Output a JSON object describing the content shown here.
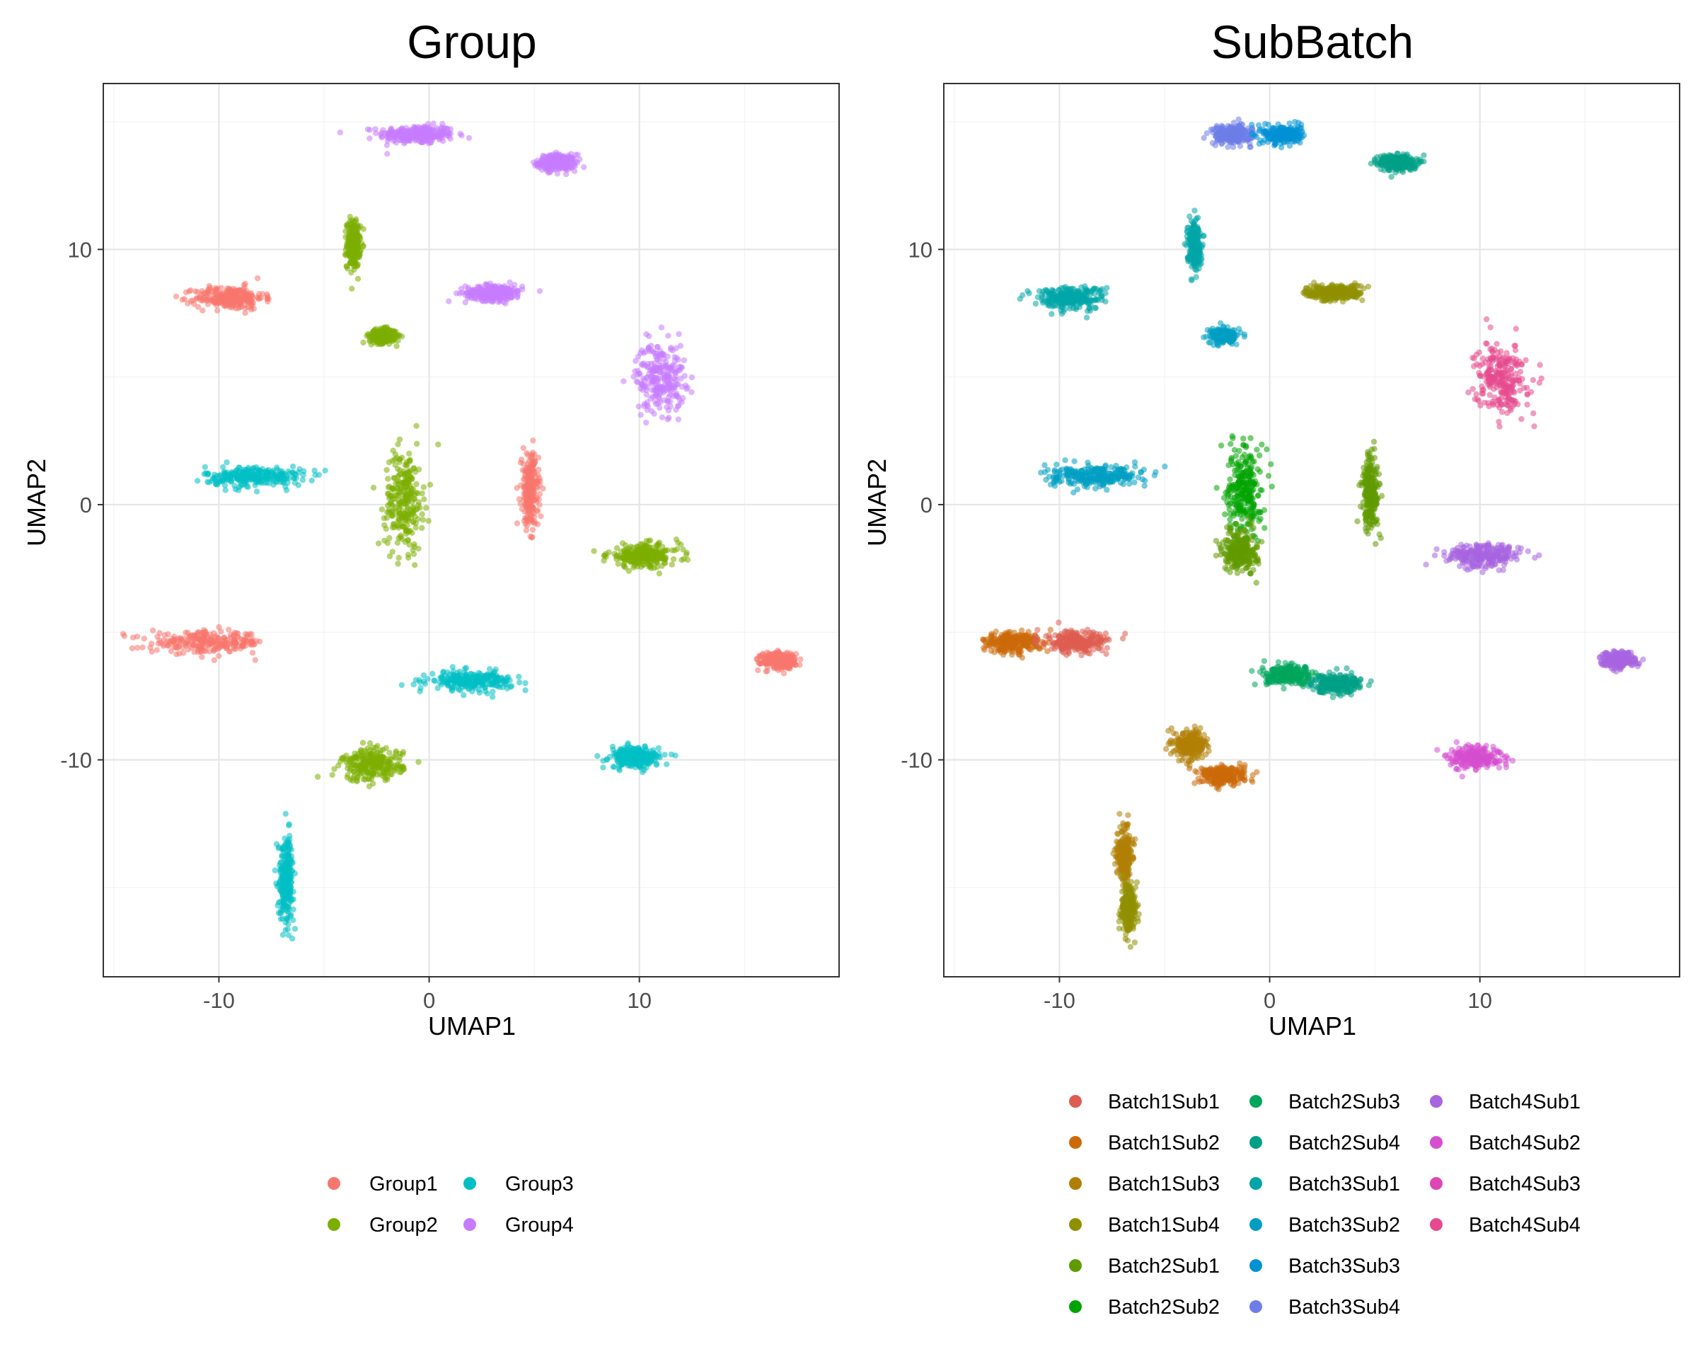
{
  "chart_data": [
    {
      "type": "scatter",
      "title": "Group",
      "xlabel": "UMAP1",
      "ylabel": "UMAP2",
      "xlim": [
        -15.5,
        19.5
      ],
      "ylim": [
        -18.5,
        16.5
      ],
      "xticks": [
        -10,
        0,
        10
      ],
      "yticks": [
        -10,
        0,
        10
      ],
      "grid": true,
      "legend_position": "bottom",
      "legend": [
        "Group1",
        "Group2",
        "Group3",
        "Group4"
      ],
      "colors": {
        "Group1": "#F8766D",
        "Group2": "#7CAE00",
        "Group3": "#00BFC4",
        "Group4": "#C77CFF"
      },
      "clusters": [
        {
          "series": "Group4",
          "center": [
            -0.6,
            14.5
          ],
          "sx": 2.0,
          "sy": 0.4
        },
        {
          "series": "Group4",
          "center": [
            6.1,
            13.4
          ],
          "sx": 1.0,
          "sy": 0.35
        },
        {
          "series": "Group2",
          "center": [
            -3.6,
            10.2
          ],
          "sx": 0.35,
          "sy": 1.0
        },
        {
          "series": "Group1",
          "center": [
            -9.5,
            8.1
          ],
          "sx": 1.8,
          "sy": 0.5
        },
        {
          "series": "Group4",
          "center": [
            3.1,
            8.3
          ],
          "sx": 1.5,
          "sy": 0.35
        },
        {
          "series": "Group2",
          "center": [
            -2.2,
            6.6
          ],
          "sx": 0.7,
          "sy": 0.3
        },
        {
          "series": "Group4",
          "center": [
            11.0,
            5.0
          ],
          "sx": 1.3,
          "sy": 1.5
        },
        {
          "series": "Group3",
          "center": [
            -8.3,
            1.1
          ],
          "sx": 2.6,
          "sy": 0.45
        },
        {
          "series": "Group2",
          "center": [
            -1.2,
            0.2
          ],
          "sx": 1.0,
          "sy": 2.2
        },
        {
          "series": "Group1",
          "center": [
            4.8,
            0.5
          ],
          "sx": 0.45,
          "sy": 1.6
        },
        {
          "series": "Group2",
          "center": [
            10.2,
            -2.0
          ],
          "sx": 1.9,
          "sy": 0.5
        },
        {
          "series": "Group1",
          "center": [
            -10.5,
            -5.4
          ],
          "sx": 3.0,
          "sy": 0.45
        },
        {
          "series": "Group3",
          "center": [
            2.0,
            -6.9
          ],
          "sx": 2.2,
          "sy": 0.4
        },
        {
          "series": "Group1",
          "center": [
            16.6,
            -6.1
          ],
          "sx": 0.9,
          "sy": 0.35
        },
        {
          "series": "Group2",
          "center": [
            -2.7,
            -10.2
          ],
          "sx": 1.6,
          "sy": 0.7
        },
        {
          "series": "Group3",
          "center": [
            9.8,
            -9.9
          ],
          "sx": 1.3,
          "sy": 0.45
        },
        {
          "series": "Group3",
          "center": [
            -6.8,
            -14.6
          ],
          "sx": 0.4,
          "sy": 1.8
        }
      ]
    },
    {
      "type": "scatter",
      "title": "SubBatch",
      "xlabel": "UMAP1",
      "ylabel": "UMAP2",
      "xlim": [
        -15.5,
        19.5
      ],
      "ylim": [
        -18.5,
        16.5
      ],
      "xticks": [
        -10,
        0,
        10
      ],
      "yticks": [
        -10,
        0,
        10
      ],
      "grid": true,
      "legend_position": "bottom",
      "legend": [
        "Batch1Sub1",
        "Batch1Sub2",
        "Batch1Sub3",
        "Batch1Sub4",
        "Batch2Sub1",
        "Batch2Sub2",
        "Batch2Sub3",
        "Batch2Sub4",
        "Batch3Sub1",
        "Batch3Sub2",
        "Batch3Sub3",
        "Batch3Sub4",
        "Batch4Sub1",
        "Batch4Sub2",
        "Batch4Sub3",
        "Batch4Sub4"
      ],
      "colors": {
        "Batch1Sub1": "#DE5C51",
        "Batch1Sub2": "#CC6A0A",
        "Batch1Sub3": "#B17F06",
        "Batch1Sub4": "#908F00",
        "Batch2Sub1": "#609A00",
        "Batch2Sub2": "#00A400",
        "Batch2Sub3": "#00A65C",
        "Batch2Sub4": "#00A086",
        "Batch3Sub1": "#00A5A8",
        "Batch3Sub2": "#009FC2",
        "Batch3Sub3": "#0092D5",
        "Batch3Sub4": "#6E7DE8",
        "Batch4Sub1": "#A865E0",
        "Batch4Sub2": "#D54FCF",
        "Batch4Sub3": "#DE47B3",
        "Batch4Sub4": "#E54B8E"
      },
      "clusters": [
        {
          "series": "Batch3Sub4",
          "center": [
            -1.8,
            14.5
          ],
          "sx": 1.0,
          "sy": 0.4
        },
        {
          "series": "Batch3Sub3",
          "center": [
            0.6,
            14.5
          ],
          "sx": 1.0,
          "sy": 0.4
        },
        {
          "series": "Batch2Sub4",
          "center": [
            6.1,
            13.4
          ],
          "sx": 1.0,
          "sy": 0.35
        },
        {
          "series": "Batch3Sub1",
          "center": [
            -3.6,
            10.2
          ],
          "sx": 0.35,
          "sy": 1.0
        },
        {
          "series": "Batch3Sub1",
          "center": [
            -9.5,
            8.1
          ],
          "sx": 1.8,
          "sy": 0.5
        },
        {
          "series": "Batch1Sub4",
          "center": [
            3.1,
            8.3
          ],
          "sx": 1.5,
          "sy": 0.35
        },
        {
          "series": "Batch3Sub2",
          "center": [
            -2.2,
            6.6
          ],
          "sx": 0.7,
          "sy": 0.3
        },
        {
          "series": "Batch4Sub4",
          "center": [
            11.0,
            5.0
          ],
          "sx": 1.3,
          "sy": 1.5
        },
        {
          "series": "Batch3Sub2",
          "center": [
            -8.3,
            1.1
          ],
          "sx": 2.6,
          "sy": 0.45
        },
        {
          "series": "Batch2Sub2",
          "center": [
            -1.2,
            0.6
          ],
          "sx": 0.9,
          "sy": 2.0
        },
        {
          "series": "Batch2Sub1",
          "center": [
            -1.4,
            -1.8
          ],
          "sx": 0.9,
          "sy": 0.9
        },
        {
          "series": "Batch2Sub1",
          "center": [
            4.8,
            0.5
          ],
          "sx": 0.45,
          "sy": 1.6
        },
        {
          "series": "Batch4Sub1",
          "center": [
            10.2,
            -2.0
          ],
          "sx": 1.9,
          "sy": 0.5
        },
        {
          "series": "Batch1Sub2",
          "center": [
            -12.3,
            -5.4
          ],
          "sx": 1.5,
          "sy": 0.45
        },
        {
          "series": "Batch1Sub1",
          "center": [
            -9.2,
            -5.4
          ],
          "sx": 1.6,
          "sy": 0.45
        },
        {
          "series": "Batch2Sub3",
          "center": [
            1.0,
            -6.7
          ],
          "sx": 1.3,
          "sy": 0.4
        },
        {
          "series": "Batch2Sub4",
          "center": [
            3.2,
            -7.0
          ],
          "sx": 1.3,
          "sy": 0.4
        },
        {
          "series": "Batch4Sub1",
          "center": [
            16.6,
            -6.1
          ],
          "sx": 0.9,
          "sy": 0.35
        },
        {
          "series": "Batch1Sub3",
          "center": [
            -3.8,
            -9.4
          ],
          "sx": 0.8,
          "sy": 0.6
        },
        {
          "series": "Batch1Sub2",
          "center": [
            -2.2,
            -10.6
          ],
          "sx": 1.2,
          "sy": 0.4
        },
        {
          "series": "Batch4Sub2",
          "center": [
            9.8,
            -9.9
          ],
          "sx": 1.3,
          "sy": 0.45
        },
        {
          "series": "Batch1Sub3",
          "center": [
            -6.9,
            -13.7
          ],
          "sx": 0.4,
          "sy": 1.2
        },
        {
          "series": "Batch1Sub4",
          "center": [
            -6.7,
            -15.8
          ],
          "sx": 0.4,
          "sy": 1.0
        }
      ]
    }
  ]
}
